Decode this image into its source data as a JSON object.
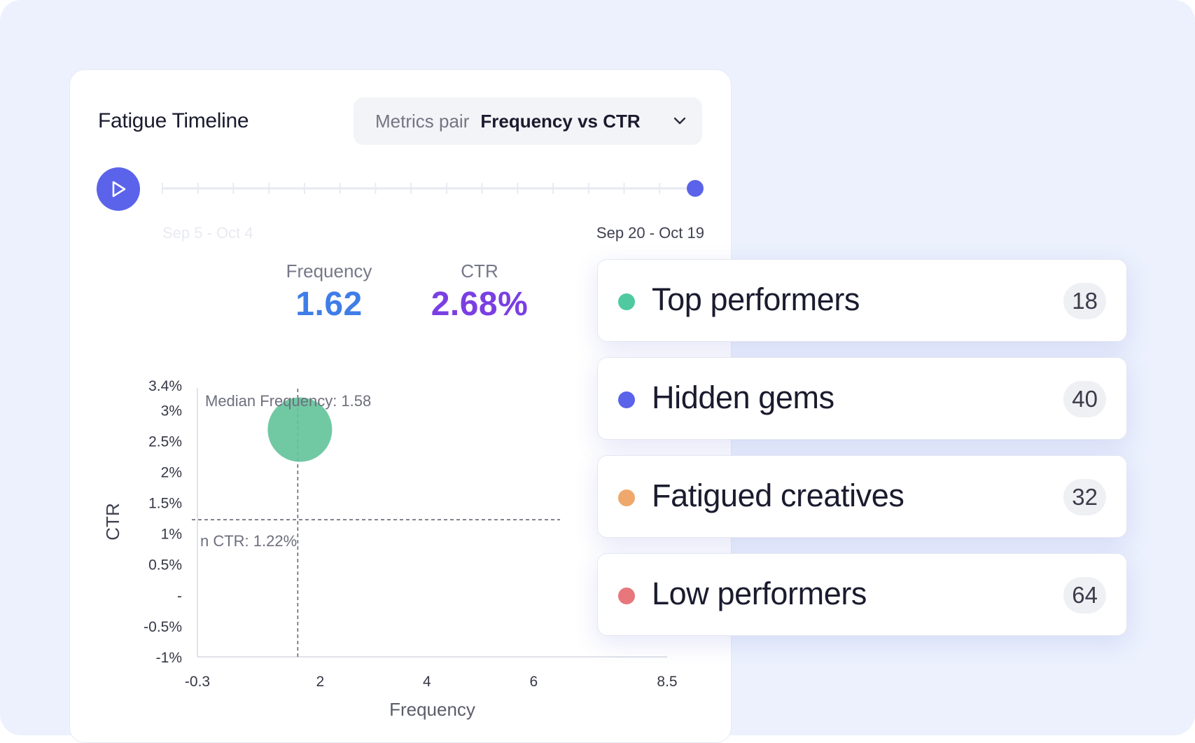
{
  "card": {
    "title": "Fatigue Timeline",
    "metrics_pair": {
      "label": "Metrics pair",
      "value": "Frequency vs CTR"
    }
  },
  "timeline": {
    "start_label": "Sep 5 - Oct 4",
    "end_label": "Sep 20 - Oct 19",
    "steps": 16,
    "current_step": 15
  },
  "stats": {
    "frequency": {
      "label": "Frequency",
      "value": "1.62"
    },
    "ctr": {
      "label": "CTR",
      "value": "2.68%"
    }
  },
  "colors": {
    "accent": "#5b63ea",
    "frequency_value": "#3f7de8",
    "ctr_value": "#7a3fe2",
    "bubble": "#62c39a",
    "top_performers": "#4fcaa0",
    "hidden_gems": "#5b63ea",
    "fatigued_creatives": "#efa86b",
    "low_performers": "#e8777b"
  },
  "chart_data": {
    "type": "scatter",
    "xlabel": "Frequency",
    "ylabel": "CTR",
    "xlim": [
      -0.3,
      8.5
    ],
    "ylim": [
      -1,
      3.4
    ],
    "x_ticks": [
      {
        "v": -0.3,
        "label": "-0.3"
      },
      {
        "v": 2,
        "label": "2"
      },
      {
        "v": 4,
        "label": "4"
      },
      {
        "v": 6,
        "label": "6"
      },
      {
        "v": 8.5,
        "label": "8.5"
      }
    ],
    "y_ticks": [
      {
        "v": 3.4,
        "label": "3.4%"
      },
      {
        "v": 3,
        "label": "3%"
      },
      {
        "v": 2.5,
        "label": "2.5%"
      },
      {
        "v": 2,
        "label": "2%"
      },
      {
        "v": 1.5,
        "label": "1.5%"
      },
      {
        "v": 1,
        "label": "1%"
      },
      {
        "v": 0.5,
        "label": "0.5%"
      },
      {
        "v": 0,
        "label": "-"
      },
      {
        "v": -0.5,
        "label": "-0.5%"
      },
      {
        "v": -1,
        "label": "-1%"
      }
    ],
    "points": [
      {
        "x": 1.62,
        "y": 2.68
      }
    ],
    "reference_lines": {
      "median_frequency": {
        "value": 1.58,
        "label": "Median Frequency: 1.58"
      },
      "median_ctr": {
        "value": 1.22,
        "label": "n CTR: 1.22%"
      }
    }
  },
  "segments": [
    {
      "name": "Top performers",
      "count": "18"
    },
    {
      "name": "Hidden gems",
      "count": "40"
    },
    {
      "name": "Fatigued creatives",
      "count": "32"
    },
    {
      "name": "Low performers",
      "count": "64"
    }
  ]
}
